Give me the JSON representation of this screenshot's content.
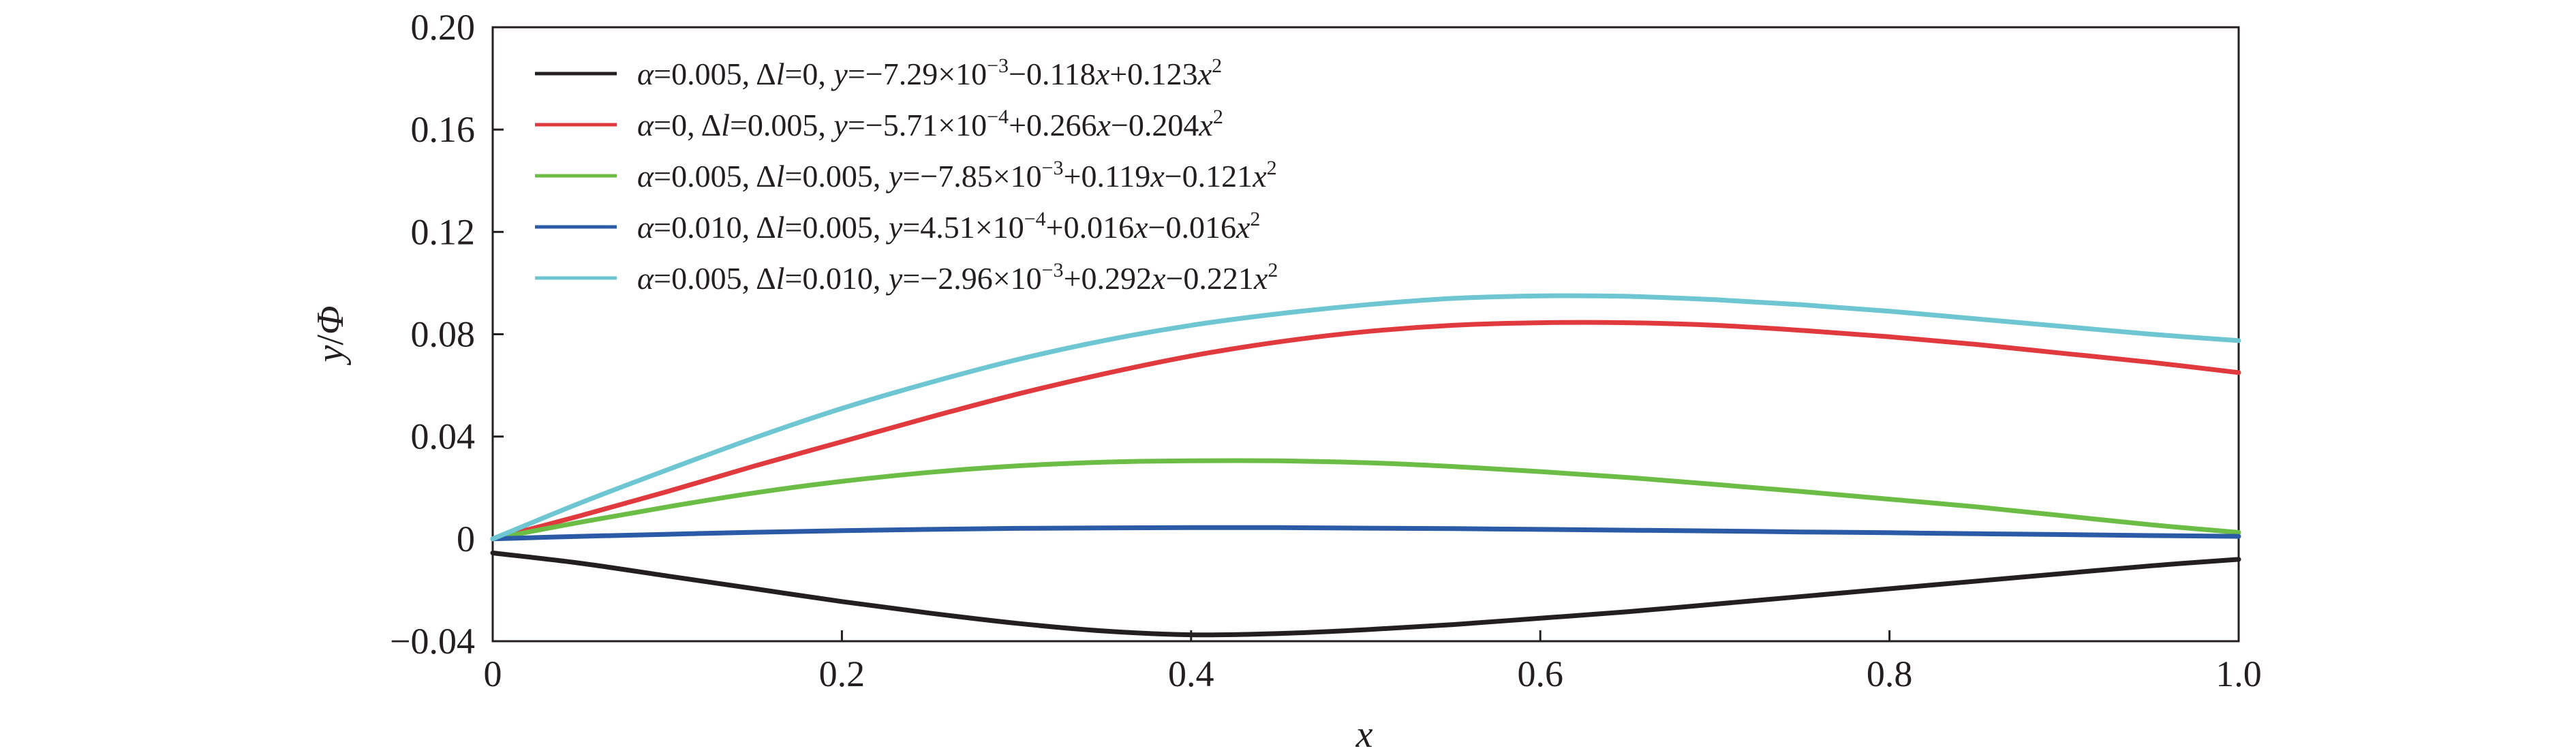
{
  "chart_data": {
    "type": "line",
    "xlabel": "x",
    "ylabel": "y/Φ",
    "xlim": [
      0,
      1.0
    ],
    "ylim": [
      -0.04,
      0.2
    ],
    "x_ticks": [
      0,
      0.2,
      0.4,
      0.6,
      0.8,
      1.0
    ],
    "x_tick_labels": [
      "0",
      "0.2",
      "0.4",
      "0.6",
      "0.8",
      "1.0"
    ],
    "y_ticks": [
      -0.04,
      0,
      0.04,
      0.08,
      0.12,
      0.16,
      0.2
    ],
    "y_tick_labels": [
      "−0.04",
      "0",
      "0.04",
      "0.08",
      "0.12",
      "0.16",
      "0.20"
    ],
    "grid": false,
    "legend_position": "top-left",
    "series": [
      {
        "name": "α=0.005, Δl=0, y=−7.29×10⁻³−0.118x+0.123x²",
        "color": "#231f20",
        "x": [
          0,
          0.05,
          0.1,
          0.15,
          0.2,
          0.25,
          0.3,
          0.35,
          0.4,
          0.45,
          0.5,
          0.55,
          0.6,
          0.65,
          0.7,
          0.75,
          0.8,
          0.85,
          0.9,
          0.95,
          1.0
        ],
        "y": [
          -0.0055,
          -0.0095,
          -0.0145,
          -0.0195,
          -0.0245,
          -0.029,
          -0.033,
          -0.036,
          -0.0375,
          -0.037,
          -0.0355,
          -0.0335,
          -0.031,
          -0.0285,
          -0.0255,
          -0.0225,
          -0.0195,
          -0.0165,
          -0.0135,
          -0.0105,
          -0.008
        ]
      },
      {
        "name": "α=0, Δl=0.005, y=−5.71×10⁻⁴+0.266x−0.204x²",
        "color": "#e03a3e",
        "x": [
          0,
          0.05,
          0.1,
          0.15,
          0.2,
          0.25,
          0.3,
          0.35,
          0.4,
          0.45,
          0.5,
          0.55,
          0.6,
          0.65,
          0.7,
          0.75,
          0.8,
          0.85,
          0.9,
          0.95,
          1.0
        ],
        "y": [
          0.0,
          0.009,
          0.0185,
          0.0285,
          0.038,
          0.0475,
          0.0565,
          0.0645,
          0.0715,
          0.077,
          0.081,
          0.0835,
          0.0845,
          0.0845,
          0.0835,
          0.0815,
          0.079,
          0.076,
          0.0725,
          0.069,
          0.065
        ]
      },
      {
        "name": "α=0.005, Δl=0.005, y=−7.85×10⁻³+0.119x−0.121x²",
        "color": "#6cbd45",
        "x": [
          0,
          0.05,
          0.1,
          0.15,
          0.2,
          0.25,
          0.3,
          0.35,
          0.4,
          0.45,
          0.5,
          0.55,
          0.6,
          0.65,
          0.7,
          0.75,
          0.8,
          0.85,
          0.9,
          0.95,
          1.0
        ],
        "y": [
          0.0,
          0.0065,
          0.0125,
          0.018,
          0.0225,
          0.026,
          0.0285,
          0.03,
          0.0305,
          0.0305,
          0.0298,
          0.0283,
          0.0263,
          0.024,
          0.0213,
          0.0185,
          0.0155,
          0.0125,
          0.009,
          0.0055,
          0.0025
        ]
      },
      {
        "name": "α=0.010, Δl=0.005, y=4.51×10⁻⁴+0.016x−0.016x²",
        "color": "#2b5aa6",
        "x": [
          0,
          0.05,
          0.1,
          0.15,
          0.2,
          0.25,
          0.3,
          0.35,
          0.4,
          0.45,
          0.5,
          0.55,
          0.6,
          0.65,
          0.7,
          0.75,
          0.8,
          0.85,
          0.9,
          0.95,
          1.0
        ],
        "y": [
          0.0,
          0.001,
          0.0018,
          0.0026,
          0.0032,
          0.0037,
          0.0041,
          0.0043,
          0.0044,
          0.0044,
          0.0042,
          0.004,
          0.0037,
          0.0034,
          0.0031,
          0.0027,
          0.0024,
          0.002,
          0.0017,
          0.0013,
          0.001
        ]
      },
      {
        "name": "α=0.005, Δl=0.010, y=−2.96×10⁻³+0.292x−0.221x²",
        "color": "#6dc6d1",
        "x": [
          0,
          0.05,
          0.1,
          0.15,
          0.2,
          0.25,
          0.3,
          0.35,
          0.4,
          0.45,
          0.5,
          0.55,
          0.6,
          0.65,
          0.7,
          0.75,
          0.8,
          0.85,
          0.9,
          0.95,
          1.0
        ],
        "y": [
          0.0,
          0.014,
          0.027,
          0.0395,
          0.051,
          0.061,
          0.07,
          0.0775,
          0.0835,
          0.088,
          0.0915,
          0.094,
          0.095,
          0.0948,
          0.0935,
          0.0915,
          0.089,
          0.086,
          0.083,
          0.08,
          0.0775
        ]
      }
    ],
    "legend": [
      {
        "alpha_sym": "α",
        "alpha_val": "=0.005, ",
        "dl_delta": "Δ",
        "dl_l": "l",
        "dl_val": "=0, ",
        "y_sym": "y",
        "eq_a": "=−7.29×10",
        "exp": "−3",
        "eq_b": "−0.118",
        "x1": "x",
        "eq_c": "+0.123",
        "x2": "x",
        "sq": "2"
      },
      {
        "alpha_sym": "α",
        "alpha_val": "=0, ",
        "dl_delta": "Δ",
        "dl_l": "l",
        "dl_val": "=0.005, ",
        "y_sym": "y",
        "eq_a": "=−5.71×10",
        "exp": "−4",
        "eq_b": "+0.266",
        "x1": "x",
        "eq_c": "−0.204",
        "x2": "x",
        "sq": "2"
      },
      {
        "alpha_sym": "α",
        "alpha_val": "=0.005, ",
        "dl_delta": "Δ",
        "dl_l": "l",
        "dl_val": "=0.005, ",
        "y_sym": "y",
        "eq_a": "=−7.85×10",
        "exp": "−3",
        "eq_b": "+0.119",
        "x1": "x",
        "eq_c": "−0.121",
        "x2": "x",
        "sq": "2"
      },
      {
        "alpha_sym": "α",
        "alpha_val": "=0.010, ",
        "dl_delta": "Δ",
        "dl_l": "l",
        "dl_val": "=0.005, ",
        "y_sym": "y",
        "eq_a": "=4.51×10",
        "exp": "−4",
        "eq_b": "+0.016",
        "x1": "x",
        "eq_c": "−0.016",
        "x2": "x",
        "sq": "2"
      },
      {
        "alpha_sym": "α",
        "alpha_val": "=0.005, ",
        "dl_delta": "Δ",
        "dl_l": "l",
        "dl_val": "=0.010, ",
        "y_sym": "y",
        "eq_a": "=−2.96×10",
        "exp": "−3",
        "eq_b": "+0.292",
        "x1": "x",
        "eq_c": "−0.221",
        "x2": "x",
        "sq": "2"
      }
    ],
    "axis_label_parts": {
      "y_num": "y",
      "y_slash": "/",
      "y_den": "Φ"
    }
  }
}
